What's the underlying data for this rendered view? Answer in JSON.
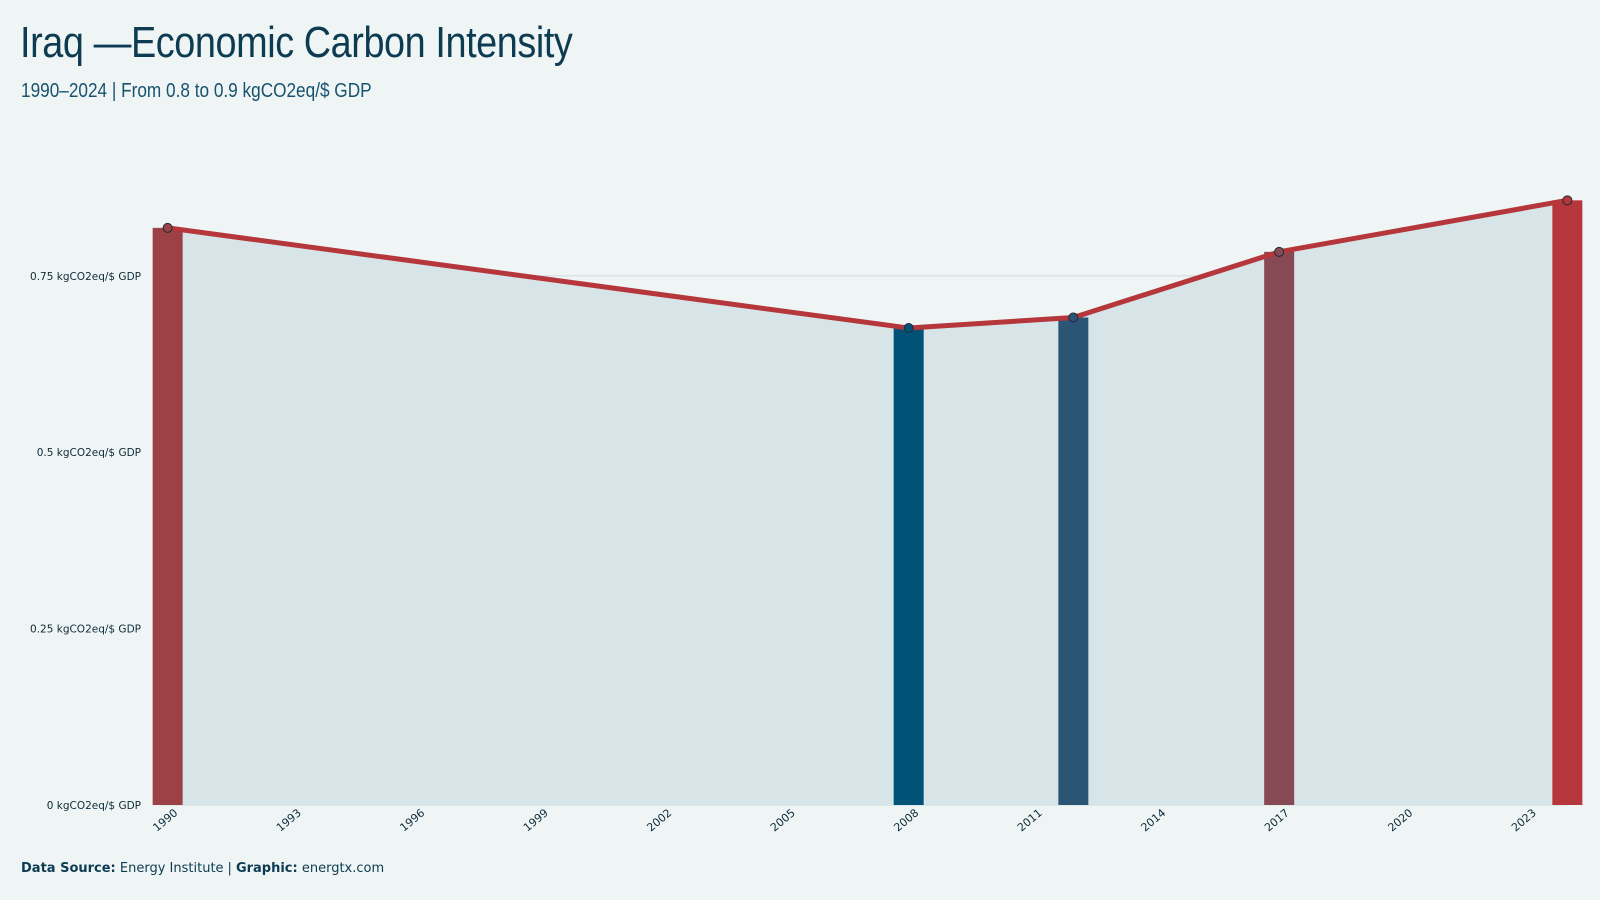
{
  "title": "Iraq —Economic Carbon Intensity",
  "subtitle": "1990–2024 | From 0.8 to 0.9 kgCO2eq/$ GDP",
  "footer": {
    "source_label": "Data Source:",
    "source_value": "Energy Institute",
    "separator": "|",
    "graphic_label": "Graphic:",
    "graphic_value": "energtx.com"
  },
  "colors": {
    "background": "#eff5f5",
    "line": "#b5373b",
    "area": "#d7e4e8",
    "grid": "#cfdadd"
  },
  "chart_data": {
    "type": "line",
    "xlim": [
      1990,
      2024
    ],
    "ylim": [
      0,
      0.9
    ],
    "y_ticks": [
      0,
      0.25,
      0.5,
      0.75
    ],
    "y_tick_labels": [
      "0 kgCO2eq/$ GDP",
      "0.25 kgCO2eq/$ GDP",
      "0.5 kgCO2eq/$ GDP",
      "0.75 kgCO2eq/$ GDP"
    ],
    "x_ticks": [
      "1990",
      "1993",
      "1996",
      "1999",
      "2002",
      "2005",
      "2008",
      "2011",
      "2014",
      "2017",
      "2020",
      "2023"
    ],
    "grid": true,
    "series": [
      {
        "x": [
          1990,
          2008,
          2012,
          2017,
          2024
        ],
        "values": [
          0.818,
          0.676,
          0.691,
          0.784,
          0.857
        ]
      }
    ],
    "highlight_bars": [
      {
        "x": 1990,
        "value": 0.818,
        "color": "#9c4146"
      },
      {
        "x": 2008,
        "value": 0.676,
        "color": "#005377"
      },
      {
        "x": 2012,
        "value": 0.691,
        "color": "#2b5575"
      },
      {
        "x": 2017,
        "value": 0.784,
        "color": "#874a55"
      },
      {
        "x": 2024,
        "value": 0.857,
        "color": "#b5373b"
      }
    ]
  }
}
